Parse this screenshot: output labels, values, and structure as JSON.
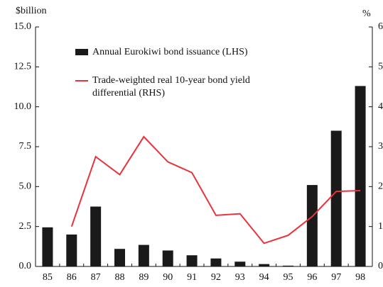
{
  "chart_data": {
    "type": "bar_line",
    "y_axis_label": "$billion",
    "y2_axis_label": "%",
    "categories": [
      "85",
      "86",
      "87",
      "88",
      "89",
      "90",
      "91",
      "92",
      "93",
      "94",
      "95",
      "96",
      "97",
      "98"
    ],
    "series": [
      {
        "name": "Annual Eurokiwi bond issuance (LHS)",
        "color": "#1a1a1a",
        "type": "bar",
        "values": [
          2.45,
          2.0,
          3.75,
          1.1,
          1.35,
          1.0,
          0.7,
          0.5,
          0.3,
          0.15,
          0.05,
          5.1,
          8.5,
          11.3
        ]
      },
      {
        "name": "Trade-weighted real 10-year bond yield differential (RHS)",
        "color": "#e8323c",
        "type": "line",
        "axis": "y2",
        "values": [
          null,
          1.0,
          2.75,
          2.3,
          3.25,
          2.62,
          2.35,
          1.28,
          1.32,
          0.58,
          0.78,
          1.25,
          1.88,
          1.9
        ]
      }
    ],
    "ylim": [
      0,
      15
    ],
    "yticks": [
      {
        "value": 0,
        "label": "0.0"
      },
      {
        "value": 2.5,
        "label": "2.5"
      },
      {
        "value": 5,
        "label": "5.0"
      },
      {
        "value": 7.5,
        "label": "7.5"
      },
      {
        "value": 10,
        "label": "10.0"
      },
      {
        "value": 12.5,
        "label": "12.5"
      },
      {
        "value": 15,
        "label": "15.0"
      }
    ],
    "y2lim": [
      0,
      6
    ],
    "y2ticks": [
      0,
      1,
      2,
      3,
      4,
      5,
      6
    ],
    "grid": false
  }
}
